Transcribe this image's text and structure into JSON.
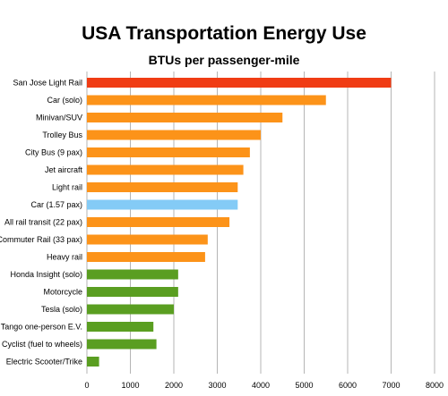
{
  "chart_data": {
    "type": "bar",
    "orientation": "horizontal",
    "title": "USA Transportation Energy Use",
    "subtitle": "BTUs per passenger-mile",
    "xlabel": "",
    "ylabel": "",
    "xlim": [
      0,
      8000
    ],
    "xticks": [
      0,
      1000,
      2000,
      3000,
      4000,
      5000,
      6000,
      7000,
      8000
    ],
    "grid": "vertical",
    "legend": "none",
    "categories": [
      "San Jose Light Rail",
      "Car (solo)",
      "Minivan/SUV",
      "Trolley Bus",
      "City Bus  (9 pax)",
      "Jet aircraft",
      "Light rail",
      "Car (1.57 pax)",
      "All rail transit (22 pax)",
      "Commuter Rail (33 pax)",
      "Heavy rail",
      "Honda Insight (solo)",
      "Motorcycle",
      "Tesla (solo)",
      "Tango one-person E.V.",
      "Cyclist (fuel to wheels)",
      "Electric Scooter/Trike"
    ],
    "values": [
      7000,
      5500,
      4500,
      4000,
      3750,
      3600,
      3470,
      3470,
      3280,
      2780,
      2720,
      2100,
      2100,
      2000,
      1530,
      1600,
      280
    ],
    "colors": [
      "#f03c14",
      "#fc9319",
      "#fc9319",
      "#fc9319",
      "#fc9319",
      "#fc9319",
      "#fc9319",
      "#84cbf6",
      "#fc9319",
      "#fc9319",
      "#fc9319",
      "#5a9e21",
      "#5a9e21",
      "#5a9e21",
      "#5a9e21",
      "#5a9e21",
      "#5a9e21"
    ]
  }
}
